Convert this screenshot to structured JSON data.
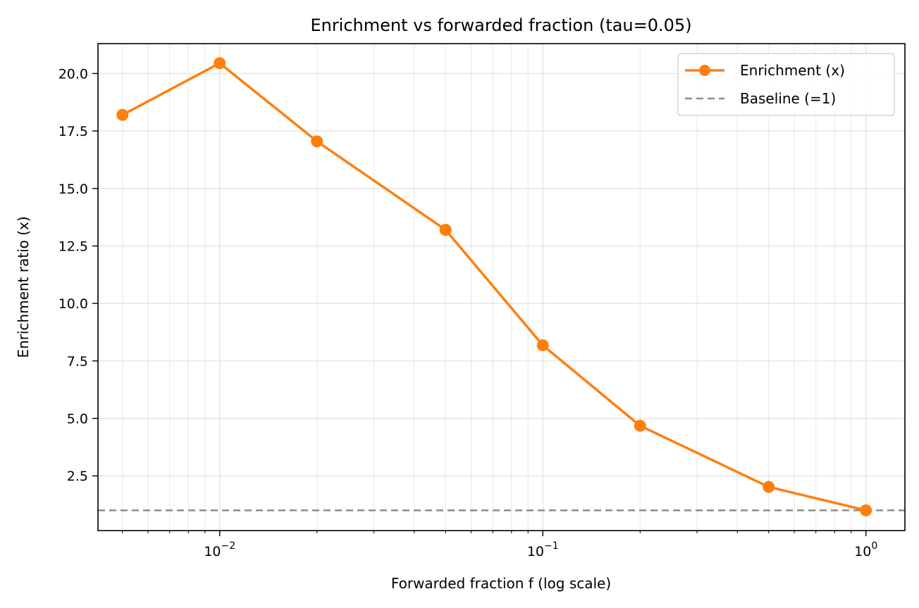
{
  "chart_data": {
    "type": "line",
    "title": "Enrichment vs forwarded fraction (tau=0.05)",
    "xlabel": "Forwarded fraction f (log scale)",
    "ylabel": "Enrichment ratio (x)",
    "xscale": "log",
    "xlim": [
      0.0042,
      1.32
    ],
    "ylim": [
      0.12,
      21.3
    ],
    "grid": true,
    "legend_position": "top-right",
    "x_ticks": [
      {
        "base": "10",
        "exp": "−2",
        "value": 0.01
      },
      {
        "base": "10",
        "exp": "−1",
        "value": 0.1
      },
      {
        "base": "10",
        "exp": "0",
        "value": 1
      }
    ],
    "y_ticks": [
      "2.5",
      "5.0",
      "7.5",
      "10.0",
      "12.5",
      "15.0",
      "17.5",
      "20.0"
    ],
    "series": [
      {
        "name": "Enrichment (x)",
        "color": "#ff7f0e",
        "marker": "circle",
        "x": [
          0.005,
          0.01,
          0.02,
          0.05,
          0.1,
          0.2,
          0.5,
          1.0
        ],
        "y": [
          18.2,
          20.45,
          17.05,
          13.2,
          8.18,
          4.68,
          2.02,
          1.0
        ]
      }
    ],
    "reference_lines": [
      {
        "name": "Baseline (=1)",
        "y": 1,
        "color": "#8c8c8c",
        "style": "dashed"
      }
    ]
  }
}
